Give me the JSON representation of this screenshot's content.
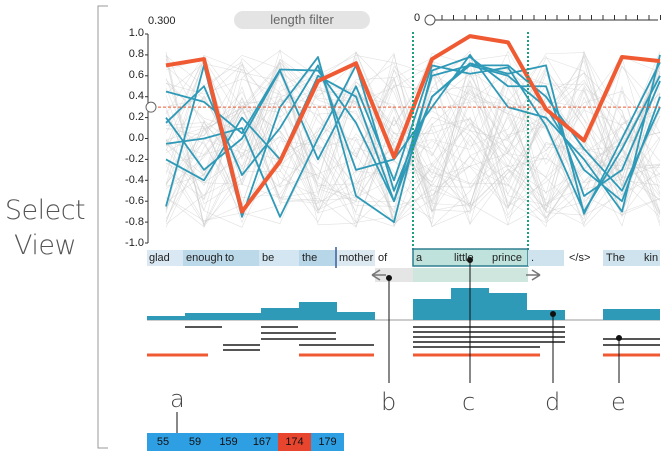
{
  "side_label": {
    "line1": "Select",
    "line2": "View"
  },
  "controls": {
    "length_filter_label": "length filter",
    "threshold_value": "0.300",
    "length_min_label": "0"
  },
  "y_ticks": [
    "1.0",
    "0.8",
    "0.6",
    "0.4",
    "0.2",
    "0.0",
    "-0.2",
    "-0.4",
    "-0.6",
    "-0.8",
    "-1.0"
  ],
  "tokens": [
    "glad",
    "enough",
    "to",
    "be",
    "the",
    "mother",
    "of",
    "a",
    "little",
    "prince",
    ".",
    "</s>",
    "The",
    "kin"
  ],
  "annotations": [
    "a",
    "b",
    "c",
    "d",
    "e"
  ],
  "bottom_values": [
    "55",
    "59",
    "159",
    "167",
    "174",
    "179"
  ],
  "colors": {
    "highlight_red": "#f05a33",
    "teal": "#2e9ab8",
    "token_bg": "#cfe3ee",
    "selected_token": "#bfe3dc",
    "selection_border": "#2e7f8f",
    "bottom_blue": "#2f9fe4",
    "bottom_red": "#e8452f"
  },
  "chart_data": {
    "type": "line",
    "ylim": [
      -1.0,
      1.0
    ],
    "threshold": 0.3,
    "categories": [
      "glad",
      "enough",
      "to",
      "be",
      "the",
      "mother",
      "of",
      "a",
      "little",
      "prince",
      ".",
      "</s>",
      "The",
      "kin"
    ],
    "series": [
      {
        "values": [
          0.7,
          0.76,
          -0.7,
          -0.22,
          0.55,
          0.72,
          -0.18,
          0.76,
          0.98,
          0.92,
          0.28,
          -0.02,
          0.78,
          0.74
        ]
      },
      {
        "values": [
          0.45,
          0.35,
          0.05,
          0.66,
          0.65,
          0.15,
          -0.6,
          0.4,
          0.72,
          0.62,
          0.7,
          -0.72,
          0.0,
          0.73
        ]
      },
      {
        "values": [
          -0.65,
          0.7,
          -0.75,
          0.3,
          0.78,
          -0.55,
          -0.8,
          0.65,
          0.78,
          0.5,
          0.5,
          -0.55,
          -0.3,
          0.55
        ]
      },
      {
        "values": [
          0.15,
          0.5,
          -0.35,
          0.1,
          0.7,
          -0.3,
          -0.2,
          0.3,
          0.8,
          0.3,
          0.2,
          -0.2,
          -0.7,
          0.8
        ]
      },
      {
        "values": [
          -0.05,
          0.0,
          0.1,
          -0.75,
          0.0,
          0.7,
          -0.5,
          0.4,
          0.7,
          0.6,
          0.3,
          -0.3,
          -0.6,
          0.4
        ]
      },
      {
        "values": [
          0.2,
          -0.3,
          0.0,
          0.65,
          -0.2,
          0.5,
          -0.4,
          0.7,
          0.62,
          0.68,
          0.12,
          -0.7,
          -0.1,
          0.6
        ]
      },
      {
        "values": [
          -0.2,
          -0.4,
          0.2,
          -0.2,
          0.6,
          0.4,
          -0.6,
          0.6,
          0.7,
          0.7,
          0.4,
          -0.1,
          -0.5,
          0.3
        ]
      }
    ]
  }
}
